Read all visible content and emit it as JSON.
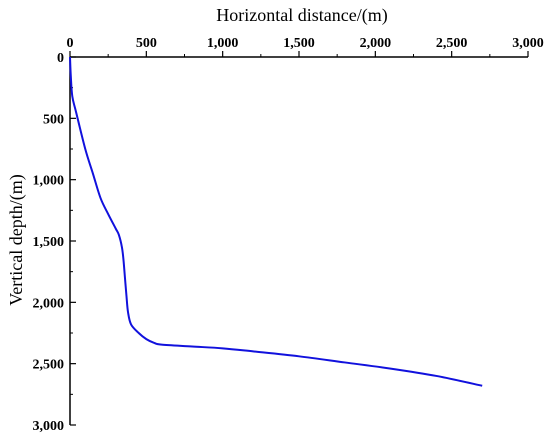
{
  "chart_data": {
    "type": "line",
    "xlabel": "Horizontal distance/(m)",
    "ylabel": "Vertical depth/(m)",
    "xlim": [
      0,
      3000
    ],
    "ylim": [
      0,
      3000
    ],
    "x_ticks": [
      0,
      500,
      1000,
      1500,
      2000,
      2500,
      3000
    ],
    "y_ticks": [
      0,
      500,
      1000,
      1500,
      2000,
      2500,
      3000
    ],
    "x_tick_labels": [
      "0",
      "500",
      "1,000",
      "1,500",
      "2,000",
      "2,500",
      "3,000"
    ],
    "y_tick_labels": [
      "0",
      "500",
      "1,000",
      "1,500",
      "2,000",
      "2,500",
      "3,000"
    ],
    "x_axis_position": "top",
    "y_axis_inverted": true,
    "grid": false,
    "line_color": "#1111dd",
    "series": [
      {
        "x": [
          0,
          5,
          15,
          40,
          100,
          150,
          200,
          250,
          300,
          320,
          340,
          350,
          360,
          370,
          380,
          400,
          450,
          500,
          550,
          600,
          800,
          1000,
          1200,
          1500,
          1800,
          2100,
          2400,
          2700
        ],
        "y": [
          0,
          150,
          320,
          450,
          750,
          950,
          1150,
          1280,
          1400,
          1450,
          1550,
          1650,
          1800,
          1950,
          2080,
          2180,
          2250,
          2300,
          2330,
          2345,
          2360,
          2375,
          2400,
          2440,
          2490,
          2540,
          2600,
          2680
        ]
      }
    ]
  }
}
